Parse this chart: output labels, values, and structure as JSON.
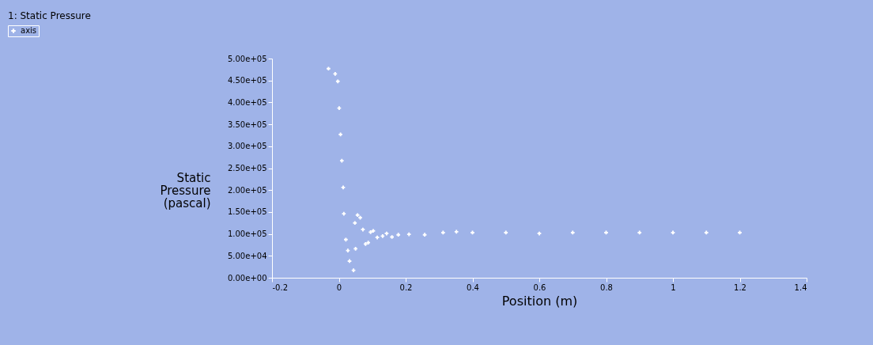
{
  "chart_data": {
    "type": "scatter",
    "title": "1: Static Pressure",
    "xlabel": "Position (m)",
    "ylabel": "Static\nPressure\n(pascal)",
    "x": [
      -0.031,
      -0.011,
      -0.003,
      0.001,
      0.005,
      0.009,
      0.013,
      0.015,
      0.021,
      0.027,
      0.032,
      0.044,
      0.05,
      0.048,
      0.056,
      0.064,
      0.072,
      0.08,
      0.088,
      0.095,
      0.103,
      0.115,
      0.131,
      0.143,
      0.159,
      0.178,
      0.21,
      0.257,
      0.312,
      0.352,
      0.4,
      0.5,
      0.6,
      0.7,
      0.8,
      0.9,
      1.0,
      1.1,
      1.2
    ],
    "series": [
      {
        "name": "axis",
        "color": "#ffffff",
        "values": [
          477000,
          465000,
          448000,
          387000,
          327000,
          267000,
          206000,
          146000,
          87000,
          62000,
          38000,
          17000,
          66000,
          125000,
          143000,
          137000,
          110000,
          77000,
          80000,
          104000,
          107000,
          92000,
          95000,
          101000,
          93000,
          98000,
          99000,
          98000,
          103000,
          105000,
          103000,
          103000,
          101000,
          103000,
          103000,
          103000,
          103000,
          103000,
          103000
        ]
      }
    ],
    "xlim": [
      -0.2,
      1.4
    ],
    "xticks": [
      -0.2,
      0,
      0.2,
      0.4,
      0.6,
      0.8,
      1,
      1.2,
      1.4
    ],
    "ylim": [
      0,
      500000
    ],
    "yticks": [
      {
        "value": 0,
        "label": "0.00e+00"
      },
      {
        "value": 50000,
        "label": "5.00e+04"
      },
      {
        "value": 100000,
        "label": "1.00e+05"
      },
      {
        "value": 150000,
        "label": "1.50e+05"
      },
      {
        "value": 200000,
        "label": "2.00e+05"
      },
      {
        "value": 250000,
        "label": "2.50e+05"
      },
      {
        "value": 300000,
        "label": "3.00e+05"
      },
      {
        "value": 350000,
        "label": "3.50e+05"
      },
      {
        "value": 400000,
        "label": "4.00e+05"
      },
      {
        "value": 450000,
        "label": "4.50e+05"
      },
      {
        "value": 500000,
        "label": "5.00e+05"
      }
    ],
    "legend": "top left",
    "marker": "cross"
  }
}
